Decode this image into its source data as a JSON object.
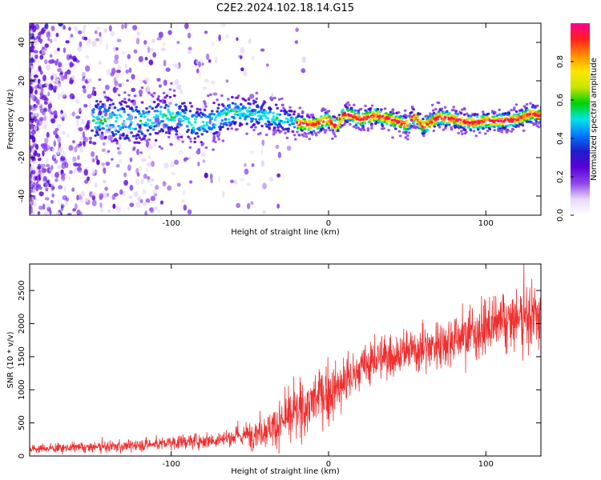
{
  "title": "C2E2.2024.102.18.14.G15",
  "chart_data": [
    {
      "type": "heatmap",
      "xlabel": "Height of straight line (km)",
      "ylabel": "Frequency (Hz)",
      "xlim": [
        -190,
        135
      ],
      "ylim": [
        -50,
        50
      ],
      "x_ticks": [
        -100,
        0,
        100
      ],
      "y_ticks": [
        -40,
        -20,
        0,
        20,
        40
      ],
      "colorbar": {
        "label": "Normalized spectral amplitude",
        "range": [
          0,
          1
        ],
        "ticks": [
          "0.0",
          "0.2",
          "0.4",
          "0.6",
          "0.8"
        ],
        "tick_values": [
          0,
          0.2,
          0.4,
          0.6,
          0.8
        ],
        "colors": [
          "#ffffff",
          "#e8d8f8",
          "#8c46e8",
          "#5a00d8",
          "#1e1ec8",
          "#0078ff",
          "#00e6e6",
          "#00d200",
          "#c8e600",
          "#ffe600",
          "#ff8c00",
          "#ff1e1e",
          "#ff0090"
        ]
      },
      "ridge": {
        "x": [
          -190,
          -150,
          -120,
          -100,
          -80,
          -60,
          -40,
          -20,
          -10,
          0,
          5,
          10,
          15,
          20,
          30,
          40,
          50,
          55,
          60,
          70,
          80,
          90,
          100,
          110,
          120,
          130,
          135
        ],
        "y": [
          0,
          0,
          -1,
          2,
          -3,
          4,
          2,
          -2,
          -3,
          0,
          -4,
          3,
          2,
          0,
          2,
          0,
          -3,
          2,
          -4,
          1,
          0,
          -2,
          -1,
          -1,
          0,
          3,
          2
        ]
      },
      "grid": false
    },
    {
      "type": "line",
      "color": "#ee3030",
      "xlabel": "Height of straight line (km)",
      "ylabel": "SNR (10 * v/v)",
      "xlim": [
        -190,
        135
      ],
      "ylim": [
        0,
        2900
      ],
      "x_ticks": [
        -100,
        0,
        100
      ],
      "y_ticks": [
        0,
        500,
        1000,
        1500,
        2000,
        2500
      ],
      "series": [
        {
          "x": [
            -190,
            -170,
            -150,
            -130,
            -110,
            -90,
            -70,
            -60,
            -50,
            -40,
            -30,
            -25,
            -20,
            -15,
            -10,
            -5,
            0,
            5,
            10,
            15,
            20,
            25,
            30,
            40,
            50,
            60,
            70,
            80,
            90,
            100,
            110,
            120,
            130,
            135
          ],
          "values": [
            110,
            120,
            130,
            150,
            180,
            220,
            250,
            280,
            330,
            400,
            500,
            570,
            650,
            740,
            820,
            900,
            950,
            1000,
            1100,
            1200,
            1300,
            1380,
            1450,
            1520,
            1580,
            1620,
            1700,
            1780,
            1850,
            1920,
            2000,
            2050,
            2100,
            2100
          ],
          "noise": [
            60,
            60,
            70,
            80,
            90,
            100,
            120,
            140,
            180,
            230,
            300,
            330,
            360,
            380,
            380,
            380,
            380,
            360,
            340,
            320,
            300,
            300,
            300,
            300,
            300,
            320,
            330,
            340,
            350,
            360,
            380,
            420,
            450,
            450
          ]
        }
      ],
      "grid": false
    }
  ]
}
